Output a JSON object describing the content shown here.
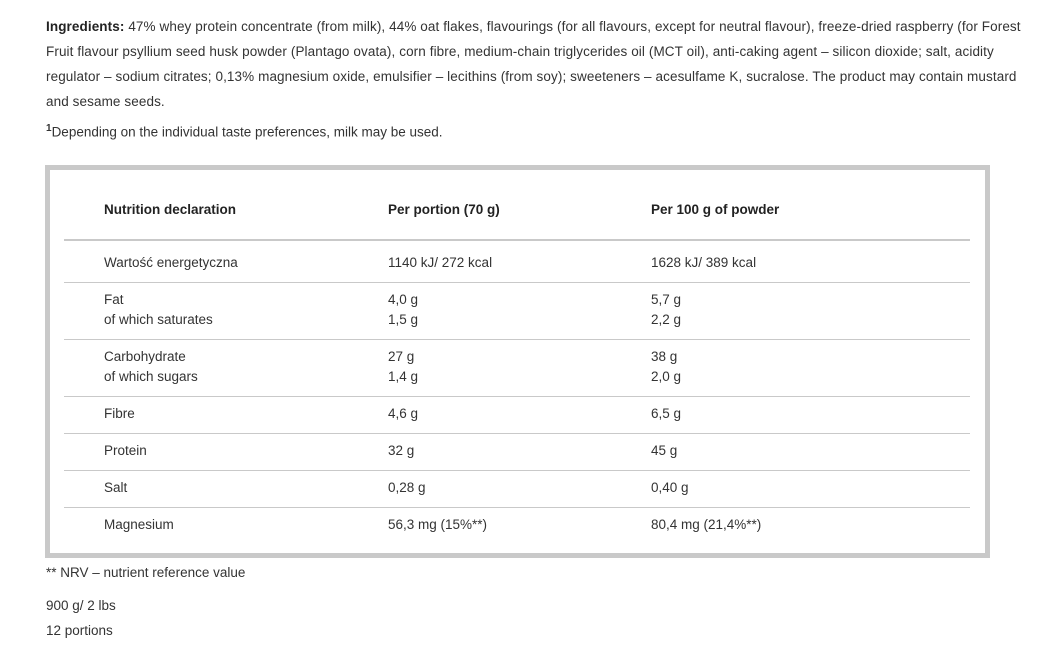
{
  "ingredients": {
    "label": "Ingredients:",
    "text": " 47% whey protein concentrate (from milk), 44% oat flakes, flavourings (for all flavours, except for neutral flavour), freeze-dried raspberry (for Forest Fruit flavour psyllium seed husk powder (Plantago ovata), corn fibre, medium-chain triglycerides oil (MCT oil), anti-caking agent – silicon dioxide; salt, acidity regulator – sodium citrates; 0,13% magnesium oxide, emulsifier – lecithins (from soy); sweeteners – acesulfame K, sucralose. The product may contain mustard and sesame seeds."
  },
  "footnote": {
    "mark": "1",
    "text": "Depending on the individual taste preferences, milk may be used."
  },
  "table": {
    "headers": [
      "Nutrition declaration",
      "Per portion (70 g)",
      "Per 100 g of powder"
    ],
    "rows": [
      {
        "name": "Wartość energetyczna",
        "portion": "1140 kJ/ 272 kcal",
        "per100": "1628 kJ/ 389 kcal"
      },
      {
        "name": "Fat",
        "sub": "of which saturates",
        "portion": "4,0 g",
        "portion_sub": "1,5 g",
        "per100": "5,7 g",
        "per100_sub": "2,2 g"
      },
      {
        "name": "Carbohydrate",
        "sub": "of which sugars",
        "portion": "27 g",
        "portion_sub": "1,4 g",
        "per100": "38 g",
        "per100_sub": "2,0 g"
      },
      {
        "name": "Fibre",
        "portion": "4,6 g",
        "per100": "6,5 g"
      },
      {
        "name": "Protein",
        "portion": "32 g",
        "per100": "45 g"
      },
      {
        "name": "Salt",
        "portion": "0,28 g",
        "per100": "0,40 g"
      },
      {
        "name": "Magnesium",
        "portion": "56,3 mg (15%**)",
        "per100": "80,4 mg (21,4%**)"
      }
    ]
  },
  "nrv_note": "** NRV – nutrient reference value",
  "weight": "900 g/ 2 lbs",
  "portions": "12 portions"
}
